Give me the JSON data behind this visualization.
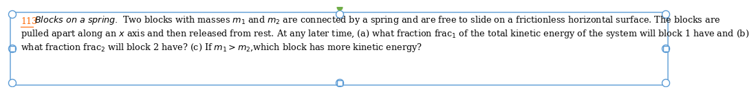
{
  "problem_number": "113",
  "title_italic": "Blocks on a spring.",
  "line1_rest": " Two blocks with masses $m_1$ and $m_2$ are connected by a spring and are free to slide on a frictionless horizontal surface. The blocks are",
  "line2": "pulled apart along an $x$ axis and then released from rest. At any later time, (a) what fraction frac$_1$ of the total kinetic energy of the system will block 1 have and (b)",
  "line3": "what fraction frac$_2$ will block 2 have? (c) If $m_1 > m_2$,which block has more kinetic energy?",
  "border_color": "#5b9bd5",
  "number_color": "#FF6600",
  "text_color": "#000000",
  "bg_color": "#ffffff",
  "font_size": 9.2,
  "circle_color": "#5b9bd5",
  "green_color": "#70AD47"
}
